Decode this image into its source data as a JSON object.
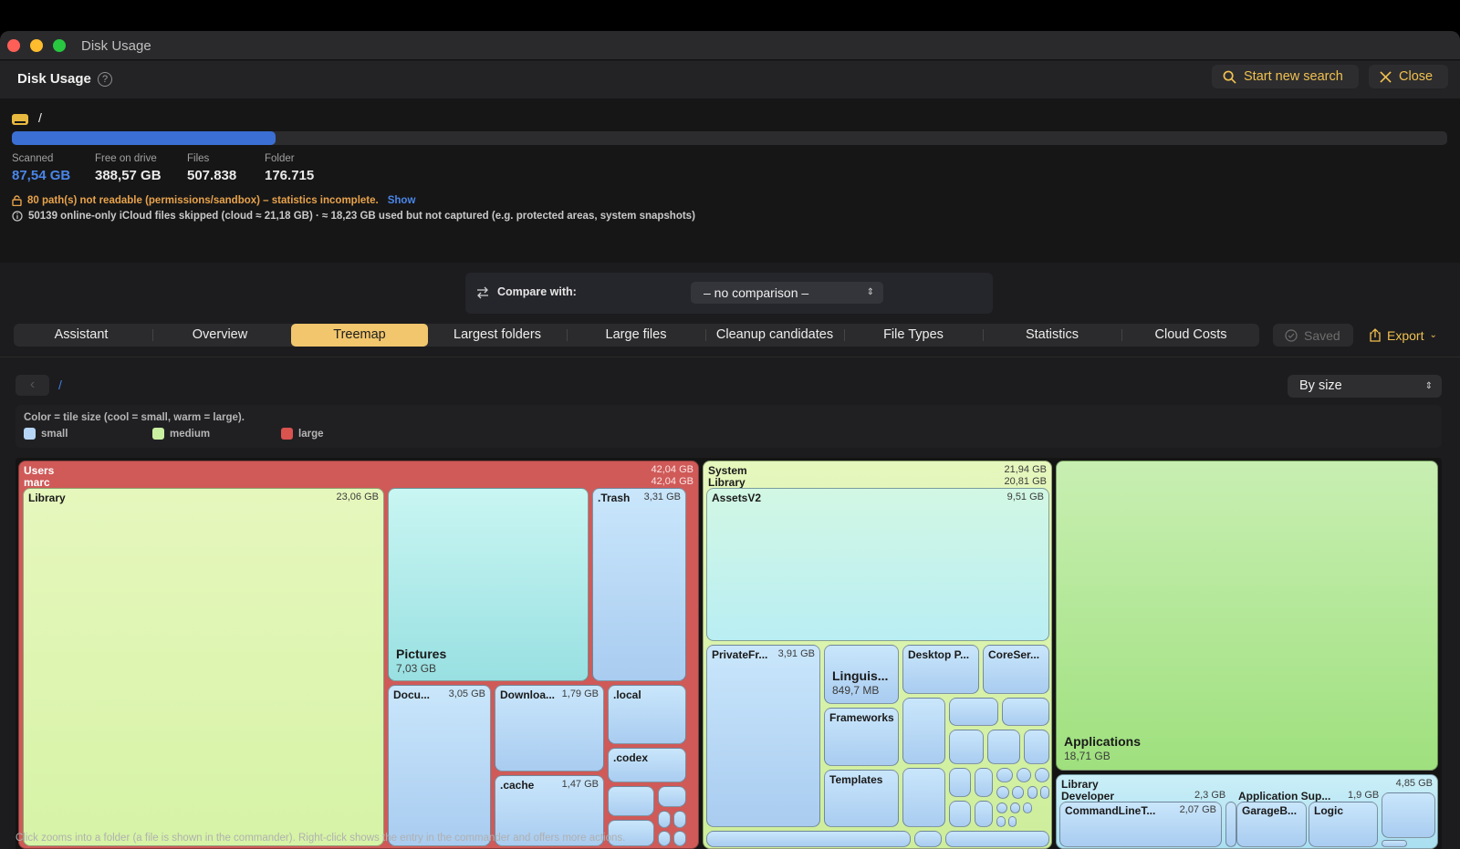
{
  "window": {
    "title": "Disk Usage"
  },
  "header": {
    "title": "Disk Usage",
    "help_icon": "?",
    "start_search_label": "Start new search",
    "close_label": "Close"
  },
  "scan": {
    "path": "/",
    "progress_percent": 18.4,
    "stats": [
      {
        "label": "Scanned",
        "value": "87,54 GB"
      },
      {
        "label": "Free on drive",
        "value": "388,57 GB"
      },
      {
        "label": "Files",
        "value": "507.838"
      },
      {
        "label": "Folder",
        "value": "176.715"
      }
    ],
    "warning": "80 path(s) not readable (permissions/sandbox) – statistics incomplete.",
    "warning_link": "Show",
    "info": "50139 online-only iCloud files skipped (cloud ≈ 21,18 GB) · ≈ 18,23 GB used but not captured (e.g. protected areas, system snapshots)"
  },
  "compare": {
    "label": "Compare with:",
    "value": "– no comparison –"
  },
  "tabs": [
    {
      "label": "Assistant"
    },
    {
      "label": "Overview"
    },
    {
      "label": "Treemap",
      "active": true
    },
    {
      "label": "Largest folders"
    },
    {
      "label": "Large files"
    },
    {
      "label": "Cleanup candidates"
    },
    {
      "label": "File Types"
    },
    {
      "label": "Statistics"
    },
    {
      "label": "Cloud Costs"
    }
  ],
  "toolbar": {
    "saved_label": "Saved",
    "export_label": "Export"
  },
  "breadcrumb": {
    "root": "/"
  },
  "sort": {
    "value": "By size"
  },
  "legend": {
    "title": "Color = tile size (cool = small, warm = large).",
    "items": [
      {
        "label": "small",
        "color": "#b7d6f7"
      },
      {
        "label": "medium",
        "color": "#c9efa0"
      },
      {
        "label": "large",
        "color": "#d9534f"
      }
    ]
  },
  "treemap": {
    "users": {
      "name": "Users",
      "size": "42,04 GB"
    },
    "marc": {
      "name": "marc",
      "size": "42,04 GB"
    },
    "library": {
      "name": "Library",
      "size": "23,06 GB"
    },
    "pictures": {
      "name": "Pictures",
      "size": "7,03 GB"
    },
    "trash": {
      "name": ".Trash",
      "size": "3,31 GB"
    },
    "documents": {
      "name": "Docu...",
      "size": "3,05 GB"
    },
    "downloads": {
      "name": "Downloa...",
      "size": "1,79 GB"
    },
    "local": {
      "name": ".local"
    },
    "codex": {
      "name": ".codex"
    },
    "cache": {
      "name": ".cache",
      "size": "1,47 GB"
    },
    "system": {
      "name": "System",
      "size": "21,94 GB"
    },
    "sys_library": {
      "name": "Library",
      "size": "20,81 GB"
    },
    "assets": {
      "name": "AssetsV2",
      "size": "9,51 GB"
    },
    "privatefr": {
      "name": "PrivateFr...",
      "size": "3,91 GB"
    },
    "linguis": {
      "name": "Linguis...",
      "size": "849,7 MB"
    },
    "desktop": {
      "name": "Desktop P..."
    },
    "coreser": {
      "name": "CoreSer..."
    },
    "frameworks": {
      "name": "Frameworks"
    },
    "templates": {
      "name": "Templates"
    },
    "applications": {
      "name": "Applications",
      "size": "18,71 GB"
    },
    "root_library": {
      "name": "Library",
      "size": "4,85 GB"
    },
    "developer": {
      "name": "Developer",
      "size": "2,3 GB"
    },
    "appsup": {
      "name": "Application Sup...",
      "size": "1,9 GB"
    },
    "clt": {
      "name": "CommandLineT...",
      "size": "2,07 GB"
    },
    "garageb": {
      "name": "GarageB..."
    },
    "logic": {
      "name": "Logic"
    }
  },
  "footer": {
    "hint": "Click zooms into a folder (a file is shown in the commander). Right-click shows the entry in the commander and offers more actions."
  }
}
